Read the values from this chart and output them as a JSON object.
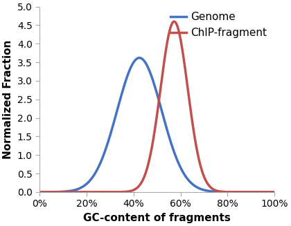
{
  "genome_mean": 0.425,
  "genome_std": 0.095,
  "genome_peak": 3.62,
  "chip_mean": 0.573,
  "chip_std": 0.058,
  "chip_peak": 4.6,
  "genome_color": "#4472C4",
  "chip_color": "#C0504D",
  "genome_label": "Genome",
  "chip_label": "ChIP-fragment",
  "xlabel": "GC-content of fragments",
  "ylabel": "Normalized Fraction",
  "xlim": [
    0,
    1.0
  ],
  "ylim": [
    0,
    5
  ],
  "yticks": [
    0,
    0.5,
    1.0,
    1.5,
    2.0,
    2.5,
    3.0,
    3.5,
    4.0,
    4.5,
    5.0
  ],
  "xticks": [
    0,
    0.2,
    0.4,
    0.6,
    0.8,
    1.0
  ],
  "line_width": 2.5,
  "axis_label_fontsize": 11,
  "tick_fontsize": 10,
  "legend_fontsize": 11,
  "background_color": "#ffffff",
  "spine_color": "#aaaaaa",
  "fig_width": 4.2,
  "fig_height": 3.27,
  "fig_dpi": 100
}
